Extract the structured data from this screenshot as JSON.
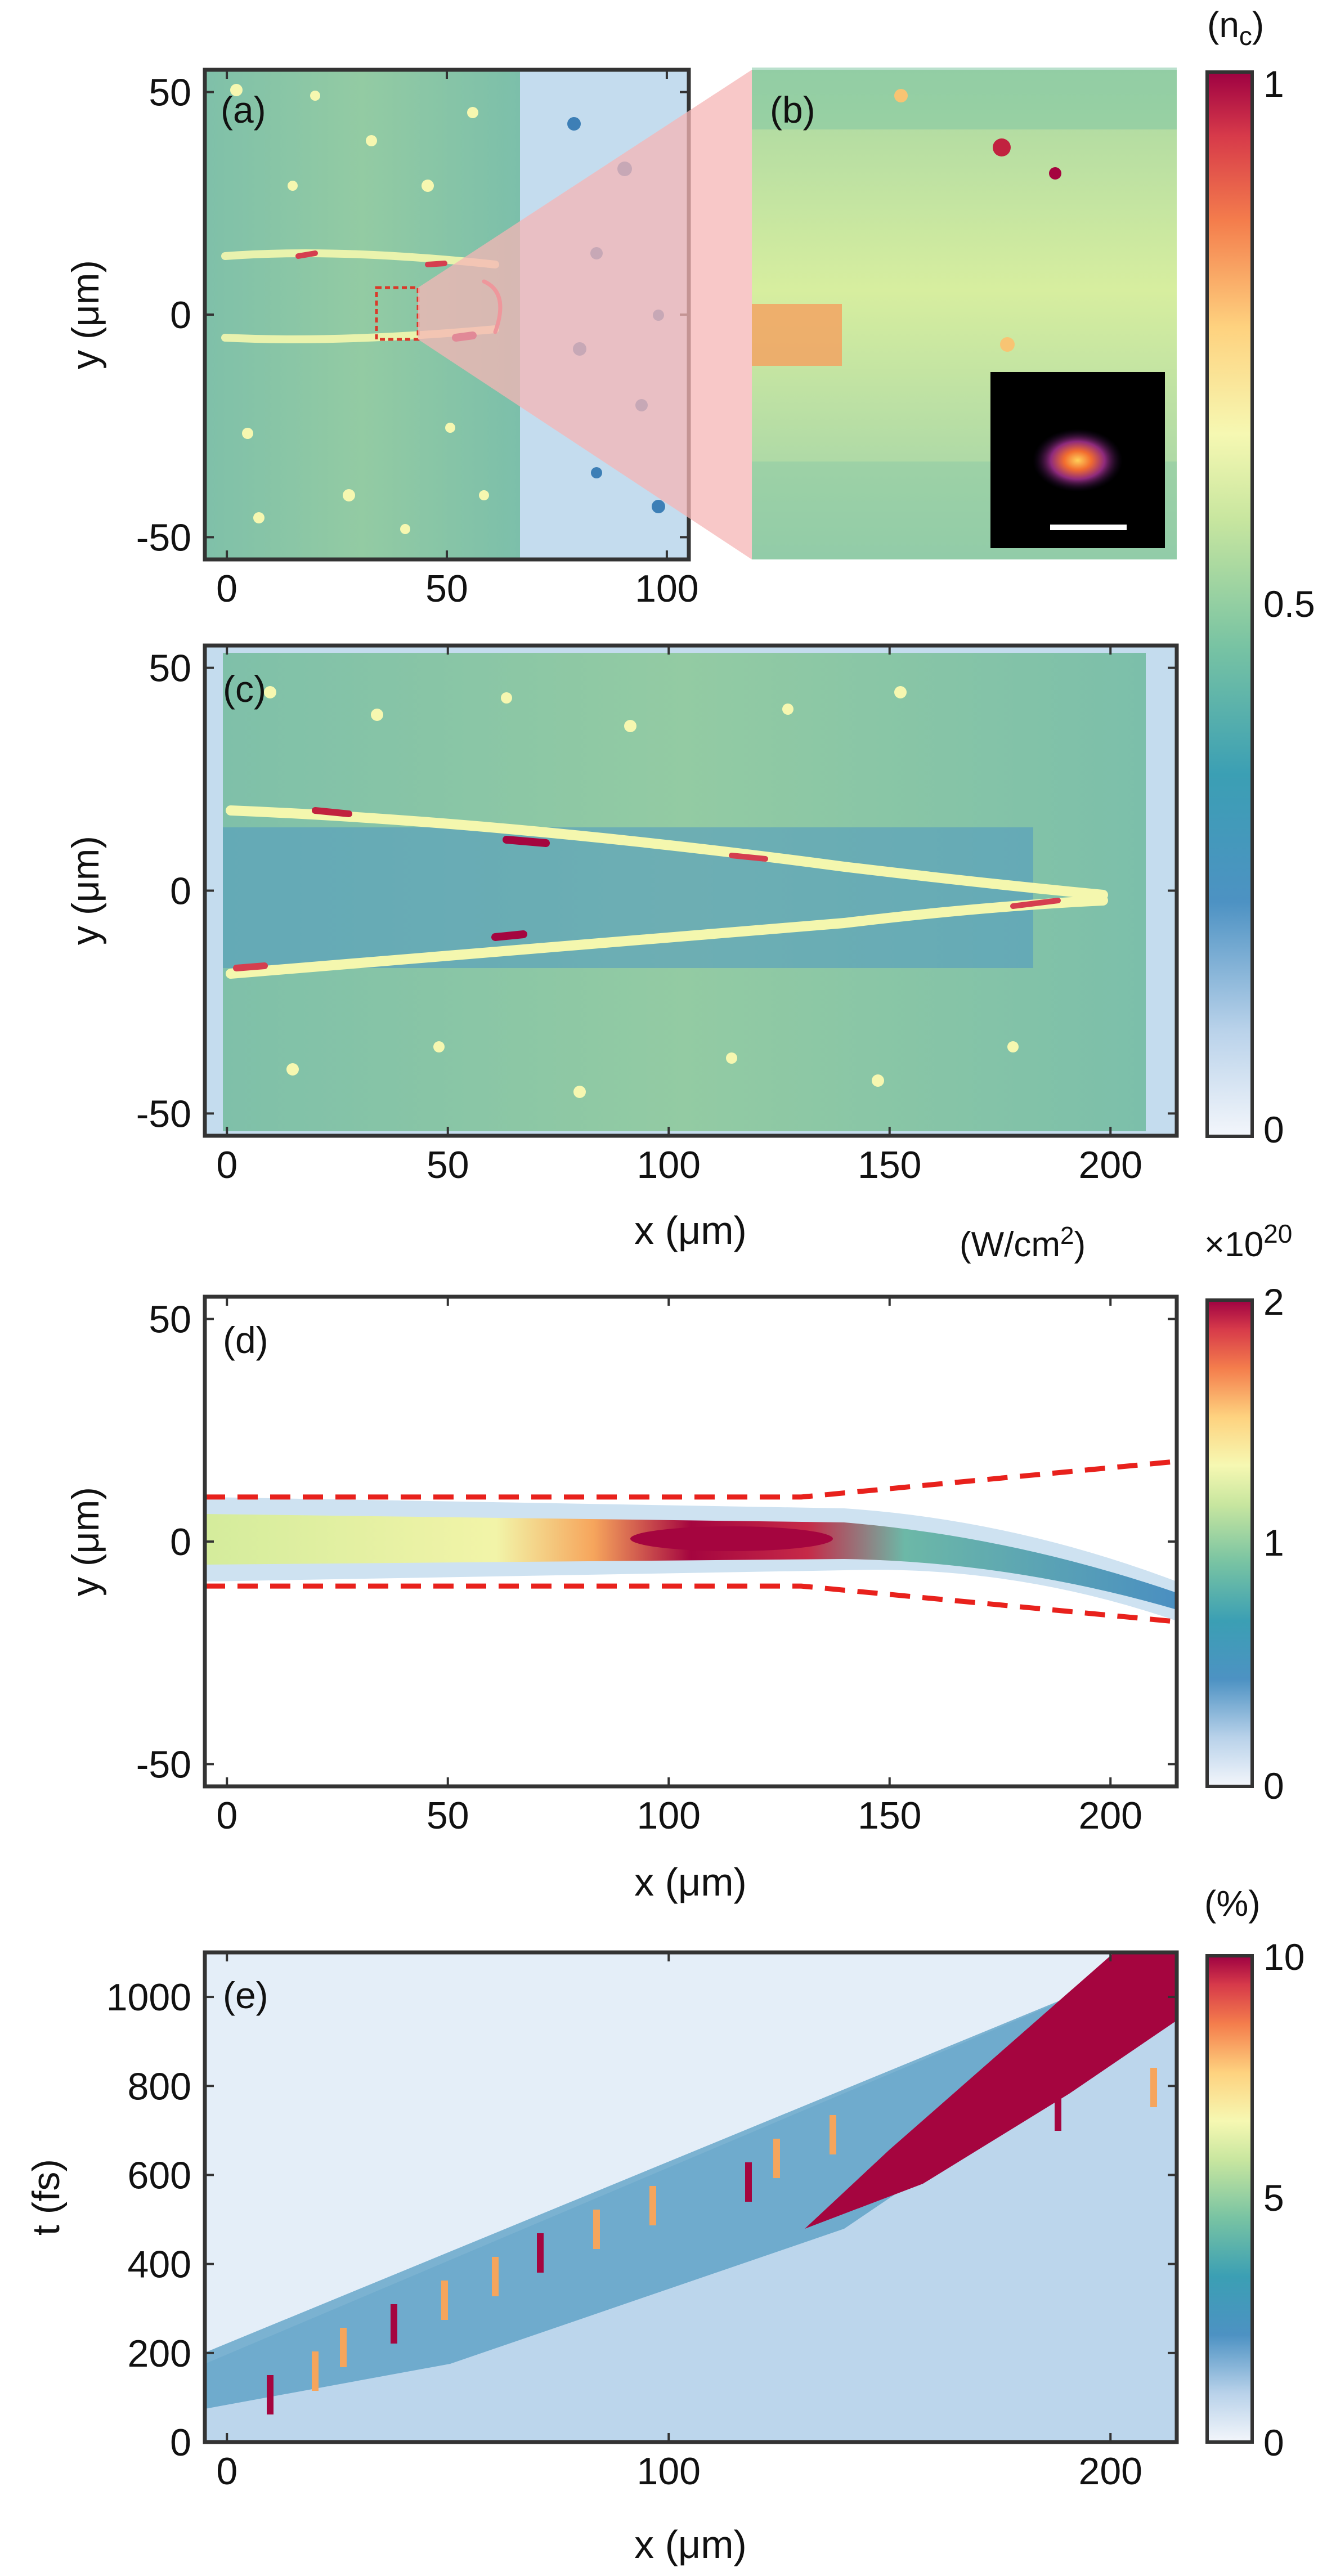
{
  "chart_data": [
    {
      "panel": "(a)",
      "type": "heatmap",
      "xlabel": "",
      "ylabel": "y (μm)",
      "xlim": [
        -5,
        105
      ],
      "ylim": [
        -55,
        55
      ],
      "xticks": [
        "0",
        "50",
        "100"
      ],
      "yticks": [
        "50",
        "0",
        "-50"
      ],
      "xtick_values": [
        0,
        50,
        100
      ],
      "ytick_values": [
        50,
        0,
        -50
      ],
      "annotations": [
        "(a)"
      ],
      "zoom_box_um": {
        "x": [
          35,
          45
        ],
        "y": [
          -5,
          5
        ]
      },
      "colorbar": {
        "label": "(n c)",
        "label_main": "(n",
        "label_sub": "c",
        "label_close": ")",
        "ticks": [
          "1",
          "0.5",
          "0"
        ],
        "range": [
          0,
          1
        ]
      }
    },
    {
      "panel": "(b)",
      "type": "heatmap",
      "annotations": [
        "(b)"
      ],
      "inset": "focal spot with scale bar"
    },
    {
      "panel": "(c)",
      "type": "heatmap",
      "xlabel": "x (μm)",
      "ylabel": "y (μm)",
      "xlim": [
        -5,
        215
      ],
      "ylim": [
        -55,
        55
      ],
      "xticks": [
        "0",
        "50",
        "100",
        "150",
        "200"
      ],
      "yticks": [
        "50",
        "0",
        "-50"
      ],
      "xtick_values": [
        0,
        50,
        100,
        150,
        200
      ],
      "ytick_values": [
        50,
        0,
        -50
      ],
      "annotations": [
        "(c)"
      ]
    },
    {
      "panel": "(d)",
      "type": "heatmap",
      "xlabel": "x (μm)",
      "ylabel": "y (μm)",
      "xlim": [
        -5,
        215
      ],
      "ylim": [
        -55,
        55
      ],
      "xticks": [
        "0",
        "50",
        "100",
        "150",
        "200"
      ],
      "yticks": [
        "50",
        "0",
        "-50"
      ],
      "xtick_values": [
        0,
        50,
        100,
        150,
        200
      ],
      "ytick_values": [
        50,
        0,
        -50
      ],
      "annotations": [
        "(d)"
      ],
      "dashed_boundary": {
        "upper": [
          [
            -5,
            10
          ],
          [
            130,
            10
          ],
          [
            215,
            18
          ]
        ],
        "lower": [
          [
            -5,
            -10
          ],
          [
            130,
            -10
          ],
          [
            215,
            -18
          ]
        ]
      },
      "colorbar": {
        "label": "(W/cm²)",
        "label_main": "(W/cm",
        "label_sup": "2",
        "label_close": ")",
        "multiplier": "×10",
        "multiplier_exp": "20",
        "ticks": [
          "2",
          "1",
          "0"
        ],
        "range": [
          0,
          2
        ]
      }
    },
    {
      "panel": "(e)",
      "type": "heatmap",
      "xlabel": "x (μm)",
      "ylabel": "t (fs)",
      "xlim": [
        -5,
        215
      ],
      "ylim": [
        0,
        1100
      ],
      "xticks": [
        "0",
        "100",
        "200"
      ],
      "yticks": [
        "1000",
        "800",
        "600",
        "400",
        "200",
        "0"
      ],
      "xtick_values": [
        0,
        100,
        200
      ],
      "ytick_values": [
        1000,
        800,
        600,
        400,
        200,
        0
      ],
      "annotations": [
        "(e)"
      ],
      "colorbar": {
        "label": "(%)",
        "ticks": [
          "10",
          "5",
          "0"
        ],
        "range": [
          0,
          10
        ]
      }
    }
  ],
  "colors": {
    "frame": "#333333",
    "dashed": "#e8211c",
    "zoom_box": "#d93a2a",
    "zoom_band": "#f6b5b5",
    "cmap_low": "#eef3fa",
    "cmap_high": "#9e0142"
  }
}
